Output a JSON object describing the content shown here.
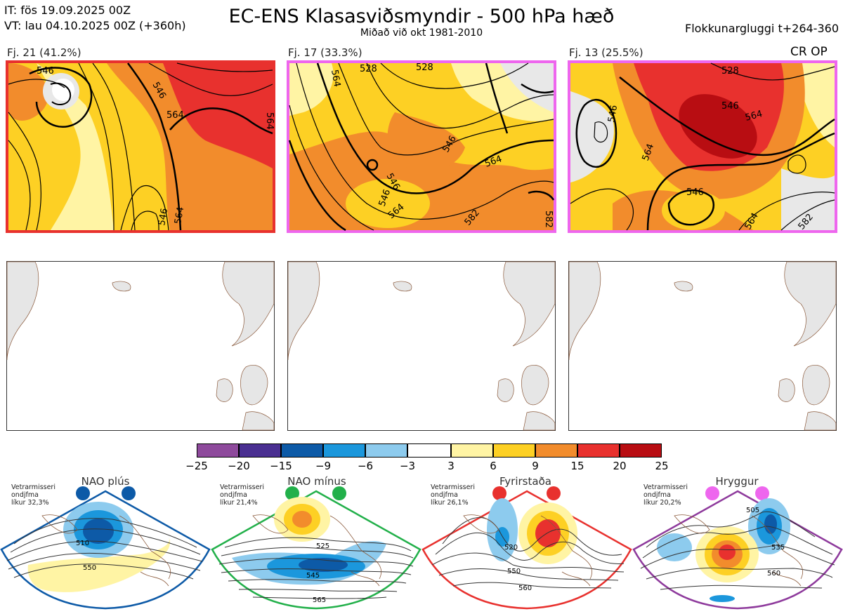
{
  "header": {
    "it_line": "IT: fös 19.09.2025 00Z",
    "vt_line": "VT: lau 04.10.2025 00Z  (+360h)",
    "title": "EC-ENS Klasasviðsmyndir - 500 hPa hæð",
    "subtitle": "Miðað við okt 1981-2010",
    "window": "Flokkunargluggi t+264-360"
  },
  "clusters": [
    {
      "label": "Fj. 21 (41.2%)",
      "frame_color": "#e8312e",
      "contours": [
        "546",
        "564",
        "564",
        "546",
        "546",
        "564"
      ]
    },
    {
      "label": "Fj. 17 (33.3%)",
      "frame_color": "#ee66ee",
      "contours": [
        "564",
        "528",
        "528",
        "546",
        "546",
        "564",
        "564",
        "546",
        "582",
        "582"
      ]
    },
    {
      "label": "Fj. 13 (25.5%)",
      "frame_color": "#ee66ee",
      "extra": "CR OP",
      "contours": [
        "528",
        "546",
        "546",
        "564",
        "564",
        "546",
        "564",
        "582"
      ]
    }
  ],
  "colorbar": {
    "ticks": [
      "−25",
      "−20",
      "−15",
      "−9",
      "−6",
      "−3",
      "3",
      "6",
      "9",
      "15",
      "20",
      "25"
    ],
    "colors": [
      "#8e4a9c",
      "#4a2f91",
      "#0d5aa7",
      "#1b97dc",
      "#8dcbee",
      "#ffffff",
      "#fff4a4",
      "#fdd024",
      "#f28c2c",
      "#e8312e",
      "#b80d12"
    ]
  },
  "regimes": [
    {
      "name": "NAO plús",
      "season": "Vetrarmisseri",
      "frequency": "ondjfma",
      "probability": "líkur 32,3%",
      "dot_color": "#0d5aa7",
      "border_color": "#0d5aa7",
      "labels": [
        "510",
        "550"
      ]
    },
    {
      "name": "NAO mínus",
      "season": "Vetrarmisseri",
      "frequency": "ondjfma",
      "probability": "líkur 21,4%",
      "dot_color": "#22b04a",
      "border_color": "#22b04a",
      "labels": [
        "525",
        "545",
        "565"
      ]
    },
    {
      "name": "Fyrirstaða",
      "season": "Vetrarmisseri",
      "frequency": "ondjfma",
      "probability": "líkur 26,1%",
      "dot_color": "#e8312e",
      "border_color": "#e8312e",
      "labels": [
        "520",
        "550",
        "560"
      ]
    },
    {
      "name": "Hryggur",
      "season": "Vetrarmisseri",
      "frequency": "ondjfma",
      "probability": "líkur 20,2%",
      "dot_color": "#ee66ee",
      "border_color": "#8e3a9c",
      "labels": [
        "505",
        "535",
        "560"
      ]
    }
  ]
}
